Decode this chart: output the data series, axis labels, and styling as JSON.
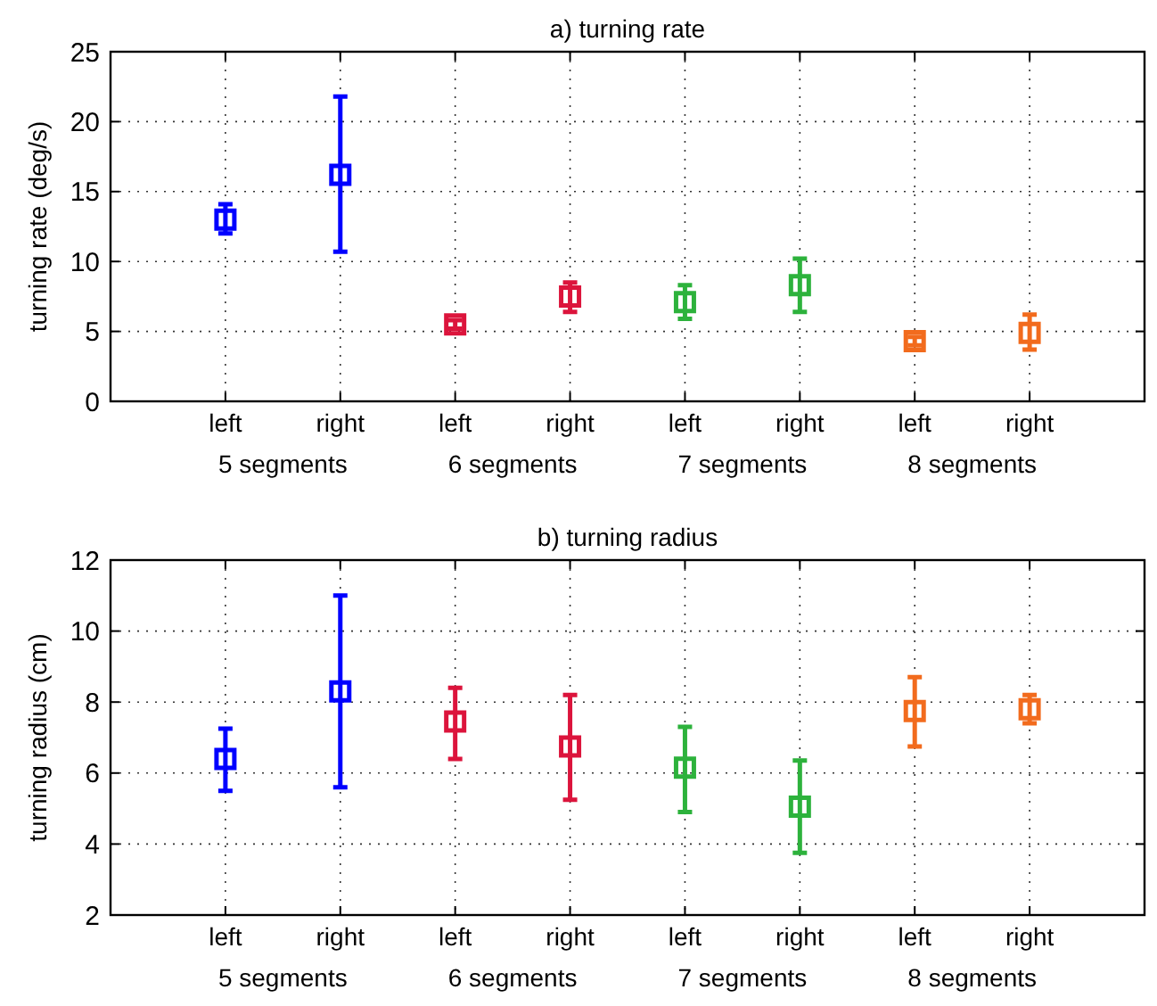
{
  "chart_data": [
    {
      "type": "scatter",
      "title": "a) turning rate",
      "ylabel": "turning rate (deg/s)",
      "categories": [
        "left",
        "right",
        "left",
        "right",
        "left",
        "right",
        "left",
        "right"
      ],
      "values": [
        13.0,
        16.2,
        5.5,
        7.5,
        7.1,
        8.3,
        4.3,
        4.9
      ],
      "errors": [
        [
          12.0,
          14.1
        ],
        [
          10.7,
          21.8
        ],
        [
          5.2,
          5.8
        ],
        [
          6.4,
          8.5
        ],
        [
          5.9,
          8.3
        ],
        [
          6.4,
          10.2
        ],
        [
          4.0,
          4.6
        ],
        [
          3.7,
          6.2
        ]
      ],
      "colors": [
        "#0000ff",
        "#0000ff",
        "#dc143c",
        "#dc143c",
        "#2db23c",
        "#2db23c",
        "#f26b1d",
        "#f26b1d"
      ],
      "annotations": [
        "5 segments",
        "6 segments",
        "7 segments",
        "8 segments"
      ],
      "ylim": [
        0,
        25
      ],
      "yticks": [
        0,
        5,
        10,
        15,
        20,
        25
      ],
      "grid": true,
      "marker": "square"
    },
    {
      "type": "scatter",
      "title": "b) turning radius",
      "ylabel": "turning radius (cm)",
      "categories": [
        "left",
        "right",
        "left",
        "right",
        "left",
        "right",
        "left",
        "right"
      ],
      "values": [
        6.4,
        8.3,
        7.45,
        6.75,
        6.15,
        5.05,
        7.75,
        7.8
      ],
      "errors": [
        [
          5.5,
          7.25
        ],
        [
          5.6,
          11.0
        ],
        [
          6.4,
          8.4
        ],
        [
          5.25,
          8.2
        ],
        [
          4.9,
          7.3
        ],
        [
          3.75,
          6.35
        ],
        [
          6.75,
          8.7
        ],
        [
          7.4,
          8.2
        ]
      ],
      "colors": [
        "#0000ff",
        "#0000ff",
        "#dc143c",
        "#dc143c",
        "#2db23c",
        "#2db23c",
        "#f26b1d",
        "#f26b1d"
      ],
      "annotations": [
        "5 segments",
        "6 segments",
        "7 segments",
        "8 segments"
      ],
      "ylim": [
        2,
        12
      ],
      "yticks": [
        2,
        4,
        6,
        8,
        10,
        12
      ],
      "grid": true,
      "marker": "square"
    }
  ]
}
